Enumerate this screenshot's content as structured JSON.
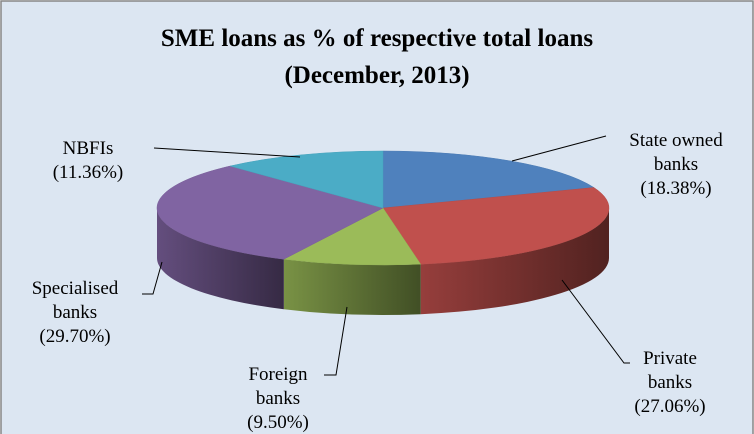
{
  "chart_data": {
    "type": "pie",
    "title": "SME loans as % of respective total loans",
    "subtitle": "(December, 2013)",
    "slices": [
      {
        "name_lines": [
          "State owned",
          "banks"
        ],
        "value": 18.38,
        "value_label": "(18.38%)",
        "color": "#4F81BD"
      },
      {
        "name_lines": [
          "Private",
          "banks"
        ],
        "value": 27.06,
        "value_label": "(27.06%)",
        "color": "#C0504D"
      },
      {
        "name_lines": [
          "Foreign",
          "banks"
        ],
        "value": 9.5,
        "value_label": "(9.50%)",
        "color": "#9BBB59"
      },
      {
        "name_lines": [
          "Specialised",
          "banks"
        ],
        "value": 29.7,
        "value_label": "(29.70%)",
        "color": "#8064A2"
      },
      {
        "name_lines": [
          "NBFIs"
        ],
        "value": 11.36,
        "value_label": "(11.36%)",
        "color": "#4BACC6"
      }
    ],
    "style": "3d-pie",
    "background": "#DCE6F2",
    "border_color": "#868686",
    "legend": "none"
  }
}
